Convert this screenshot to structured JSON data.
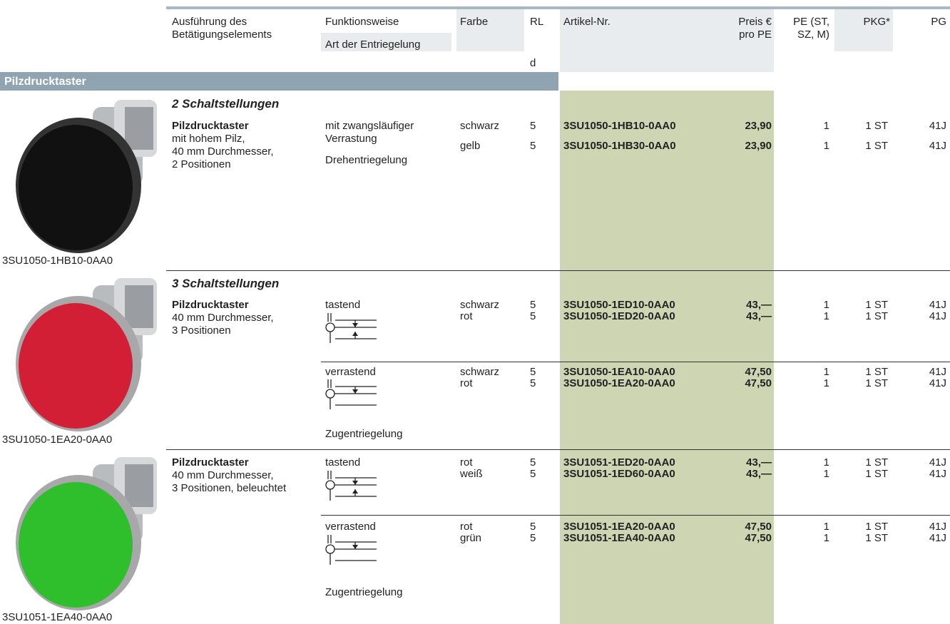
{
  "header": {
    "columns": [
      {
        "lines": [
          "Ausführung des",
          "Betätigungselements"
        ]
      },
      {
        "lines": [
          "Funktionsweise",
          "Art der Entriegelung"
        ]
      },
      {
        "lines": [
          "Farbe"
        ]
      },
      {
        "lines": [
          "RL",
          "d"
        ]
      },
      {
        "lines": [
          "Artikel-Nr."
        ]
      },
      {
        "lines": [
          "Preis €",
          "pro PE"
        ]
      },
      {
        "lines": [
          "PE (ST,",
          "SZ, M)"
        ]
      },
      {
        "lines": [
          "PKG*"
        ]
      },
      {
        "lines": [
          "PG"
        ]
      }
    ]
  },
  "section": "Pilzdrucktaster",
  "groups": [
    {
      "heading": "2 Schaltstellungen",
      "products": [
        {
          "caption": "3SU1050-1HB10-0AA0",
          "name": "Pilzdrucktaster",
          "description": [
            "mit hohem Pilz,",
            "40 mm Durchmesser,",
            "2 Positionen"
          ],
          "variants": [
            {
              "function": [
                "mit zwangsläufiger",
                "Verrastung"
              ],
              "release": "Drehentriegelung",
              "rows": [
                [
                  "schwarz",
                  5,
                  "3SU1050-1HB10-0AA0",
                  "23,90",
                  1,
                  "1 ST",
                  "41J"
                ],
                [
                  "gelb",
                  5,
                  "3SU1050-1HB30-0AA0",
                  "23,90",
                  1,
                  "1 ST",
                  "41J"
                ]
              ]
            }
          ]
        }
      ]
    },
    {
      "heading": "3 Schaltstellungen",
      "products": [
        {
          "caption": "3SU1050-1EA20-0AA0",
          "name": "Pilzdrucktaster",
          "description": [
            "40 mm Durchmesser,",
            "3 Positionen"
          ],
          "variants": [
            {
              "function": [
                "tastend"
              ],
              "rows": [
                [
                  "schwarz",
                  5,
                  "3SU1050-1ED10-0AA0",
                  "43,—",
                  1,
                  "1 ST",
                  "41J"
                ],
                [
                  "rot",
                  5,
                  "3SU1050-1ED20-0AA0",
                  "43,—",
                  1,
                  "1 ST",
                  "41J"
                ]
              ]
            },
            {
              "function": [
                "verrastend"
              ],
              "release": "Zugentriegelung",
              "rows": [
                [
                  "schwarz",
                  5,
                  "3SU1050-1EA10-0AA0",
                  "47,50",
                  1,
                  "1 ST",
                  "41J"
                ],
                [
                  "rot",
                  5,
                  "3SU1050-1EA20-0AA0",
                  "47,50",
                  1,
                  "1 ST",
                  "41J"
                ]
              ]
            }
          ]
        },
        {
          "caption": "3SU1051-1EA40-0AA0",
          "name": "Pilzdrucktaster",
          "description": [
            "40 mm Durchmesser,",
            "3 Positionen, beleuchtet"
          ],
          "variants": [
            {
              "function": [
                "tastend"
              ],
              "rows": [
                [
                  "rot",
                  5,
                  "3SU1051-1ED20-0AA0",
                  "43,—",
                  1,
                  "1 ST",
                  "41J"
                ],
                [
                  "weiß",
                  5,
                  "3SU1051-1ED60-0AA0",
                  "43,—",
                  1,
                  "1 ST",
                  "41J"
                ]
              ]
            },
            {
              "function": [
                "verrastend"
              ],
              "release": "Zugentriegelung",
              "rows": [
                [
                  "rot",
                  5,
                  "3SU1051-1EA20-0AA0",
                  "47,50",
                  1,
                  "1 ST",
                  "41J"
                ],
                [
                  "grün",
                  5,
                  "3SU1051-1EA40-0AA0",
                  "47,50",
                  1,
                  "1 ST",
                  "41J"
                ]
              ]
            }
          ]
        }
      ]
    }
  ]
}
